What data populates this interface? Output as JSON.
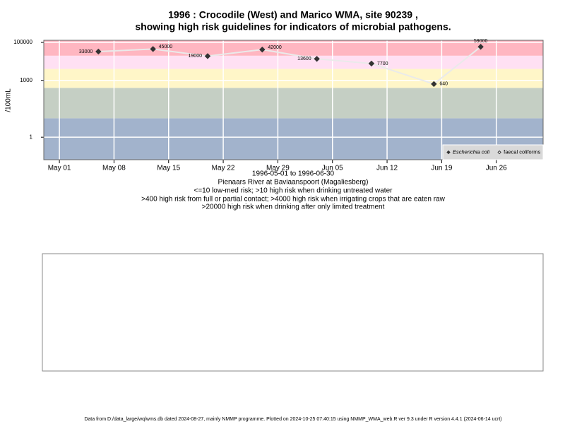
{
  "chart_data": {
    "type": "line",
    "title": [
      "1996 : Crocodile (West) and Marico WMA, site 90239 ,",
      "showing high risk guidelines for indicators of microbial pathogens."
    ],
    "y_label": "/100mL",
    "x_label": [
      "1996-05-01 to 1996-06-30",
      "Pienaars River at Baviaanspoort (Magaliesberg)",
      "<=10 low-med risk; >10 high risk when drinking untreated water",
      ">400 high risk from full or partial contact; >4000 high risk when irrigating crops that are eaten raw",
      ">20000 high risk when drinking after only limited treatment"
    ],
    "log_y": true,
    "grid": true,
    "legend_position": "bottom-right",
    "risk_thresholds": [
      10,
      400,
      4000,
      20000
    ],
    "risk_colors": [
      "#a2b3cc",
      "#c5cfc4",
      "#fff6c8",
      "#ffe0f3",
      "#ffb6c1"
    ],
    "x": [
      "1996-05-06",
      "1996-05-13",
      "1996-05-20",
      "1996-05-27",
      "1996-06-03",
      "1996-06-10",
      "1996-06-18",
      "1996-06-24"
    ],
    "xlim": [
      "1996-04-29",
      "1996-07-02"
    ],
    "xticks": [
      {
        "value": "1996-05-01",
        "label": "May 01"
      },
      {
        "value": "1996-05-08",
        "label": "May 08"
      },
      {
        "value": "1996-05-15",
        "label": "May 15"
      },
      {
        "value": "1996-05-22",
        "label": "May 22"
      },
      {
        "value": "1996-05-29",
        "label": "May 29"
      },
      {
        "value": "1996-06-05",
        "label": "Jun 05"
      },
      {
        "value": "1996-06-12",
        "label": "Jun 12"
      },
      {
        "value": "1996-06-19",
        "label": "Jun 19"
      },
      {
        "value": "1996-06-26",
        "label": "Jun 26"
      }
    ],
    "ylim": [
      0.065,
      130000
    ],
    "yticks": [
      1,
      1000,
      100000
    ],
    "series": [
      {
        "name": "Escherichia coli",
        "color": "#333333",
        "values": [
          33000,
          45000,
          19000,
          42000,
          13600,
          7700,
          640,
          59000
        ]
      },
      {
        "name": "faecal coliforms",
        "color": "#333333",
        "values": [
          null,
          null,
          null,
          null,
          null,
          null,
          null,
          null
        ]
      }
    ],
    "footer": "Data from D:/data_large/wq/wms.db dated 2024-08-27, mainly NMMP programme. Plotted on 2024-10-25 07:40:15 using NMMP_WMA_web.R ver 9.3 under R version 4.4.1 (2024-06-14 ucrt)"
  }
}
